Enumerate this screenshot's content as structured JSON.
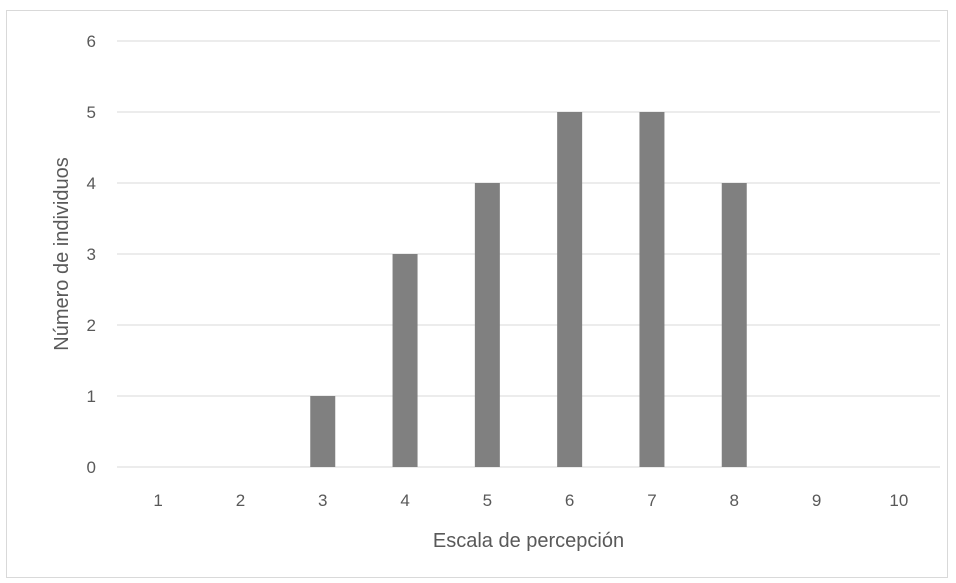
{
  "chart_data": {
    "type": "bar",
    "title": "",
    "xlabel": "Escala de percepción",
    "ylabel": "Número de individuos",
    "categories": [
      "1",
      "2",
      "3",
      "4",
      "5",
      "6",
      "7",
      "8",
      "9",
      "10"
    ],
    "values": [
      0,
      0,
      1,
      3,
      4,
      5,
      5,
      4,
      0,
      0
    ],
    "yticks": [
      "0",
      "1",
      "2",
      "3",
      "4",
      "5",
      "6"
    ],
    "ylim": [
      0,
      6
    ],
    "grid": true,
    "legend": "none",
    "bar_color": "#808080",
    "grid_color": "#d9d9d9"
  }
}
